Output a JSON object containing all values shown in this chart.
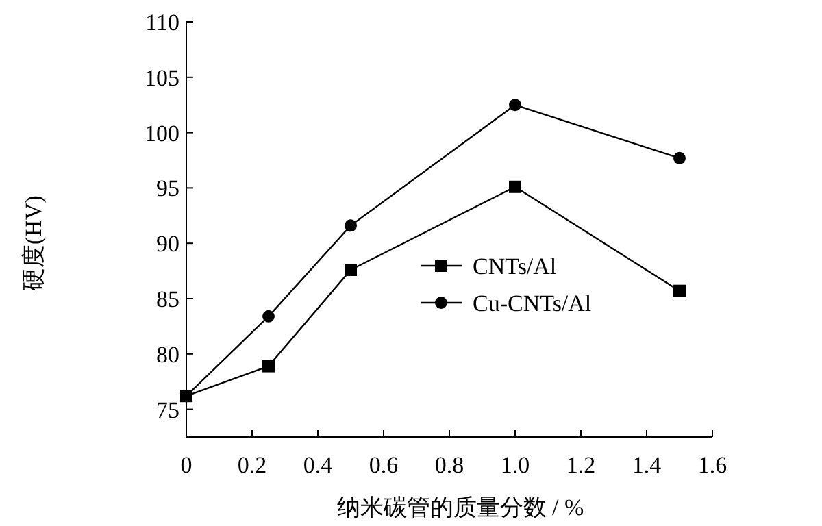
{
  "chart_data": {
    "type": "line",
    "xlabel": "纳米碳管的质量分数 / %",
    "ylabel": "硬度(HV)",
    "x": [
      0,
      0.25,
      0.5,
      1.0,
      1.5
    ],
    "series": [
      {
        "name": "CNTs/Al",
        "color": "#000000",
        "marker": "square",
        "values": [
          76.2,
          78.9,
          87.6,
          95.1,
          85.7
        ]
      },
      {
        "name": "Cu-CNTs/Al",
        "color": "#000000",
        "marker": "circle",
        "values": [
          76.2,
          83.4,
          91.6,
          102.5,
          97.7
        ]
      }
    ],
    "xlim": [
      0,
      1.6
    ],
    "xticks": [
      0,
      0.2,
      0.4,
      0.6,
      0.8,
      {
        "value": 1.0,
        "label": "1.0"
      },
      1.2,
      1.4,
      1.6
    ],
    "ylim": [
      72.5,
      110
    ],
    "yticks": [
      75,
      80,
      85,
      90,
      95,
      100,
      105,
      110
    ],
    "grid": false,
    "legend": "center right",
    "line_style": "solid"
  }
}
